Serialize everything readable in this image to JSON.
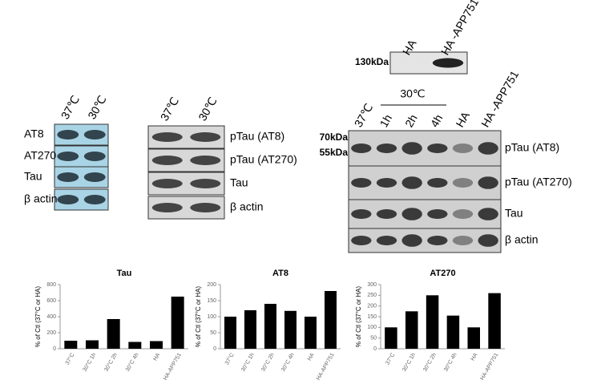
{
  "blots": [
    {
      "columns": [
        "37℃",
        "30℃"
      ],
      "rows": [
        "AT8",
        "AT270",
        "Tau",
        "β actin"
      ]
    },
    {
      "columns": [
        "37℃",
        "30℃"
      ],
      "rows": [
        "pTau (AT8)",
        "pTau (AT270)",
        "Tau",
        "β actin"
      ]
    },
    {
      "columns": [
        "HA",
        "HA -APP751"
      ],
      "markers": [
        "130kDa"
      ]
    },
    {
      "group": "30℃",
      "columns": [
        "37℃",
        "1h",
        "2h",
        "4h",
        "HA",
        "HA -APP751"
      ],
      "markers": [
        "70kDa",
        "55kDa"
      ],
      "rows": [
        "pTau (AT8)",
        "pTau (AT270)",
        "Tau",
        "β actin"
      ]
    }
  ],
  "chart_data": [
    {
      "type": "bar",
      "title": "Tau",
      "y_label": "% of Ctl (37°C or HA)",
      "categories": [
        "37°C",
        "30°C 1h",
        "30°C 2h",
        "30°C 4h",
        "HA",
        "HA-APP751"
      ],
      "values": [
        100,
        105,
        370,
        85,
        95,
        650
      ],
      "color": "#000000",
      "ylim": [
        0,
        800
      ],
      "yticks": [
        0,
        200,
        400,
        600,
        800
      ]
    },
    {
      "type": "bar",
      "title": "AT8",
      "y_label": "% of Ctl (37°C or HA)",
      "categories": [
        "37°C",
        "30°C 1h",
        "30°C 2h",
        "30°C 4h",
        "HA",
        "HA-APP751"
      ],
      "values": [
        100,
        120,
        140,
        118,
        100,
        180
      ],
      "color": "#000000",
      "ylim": [
        0,
        200
      ],
      "yticks": [
        0,
        50,
        100,
        150,
        200
      ]
    },
    {
      "type": "bar",
      "title": "AT270",
      "y_label": "% of Ctl (37°C or HA)",
      "categories": [
        "37°C",
        "30°C 1h",
        "30°C 2h",
        "30°C 4h",
        "HA",
        "HA-APP751"
      ],
      "values": [
        100,
        175,
        250,
        155,
        100,
        260
      ],
      "color": "#000000",
      "ylim": [
        0,
        300
      ],
      "yticks": [
        0,
        50,
        100,
        150,
        200,
        250,
        300
      ]
    }
  ]
}
